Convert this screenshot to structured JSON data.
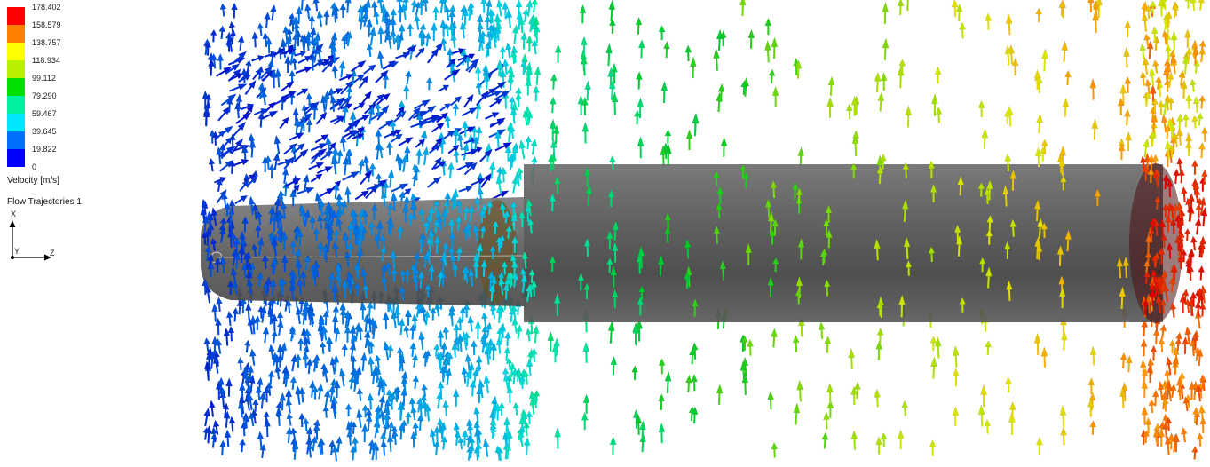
{
  "legend": {
    "ticks": [
      "178.402",
      "158.579",
      "138.757",
      "118.934",
      "99.112",
      "79.290",
      "59.467",
      "39.645",
      "19.822",
      "0"
    ],
    "colors": [
      "#ff0000",
      "#ff7f00",
      "#ffff00",
      "#b8f000",
      "#00e000",
      "#00f0a0",
      "#00e5ff",
      "#0070ff",
      "#0000ff"
    ],
    "quantity_label": "Velocity [m/s]",
    "plot_name": "Flow Trajectories 1"
  },
  "triad": {
    "x_label": "X",
    "y_label": "Y",
    "z_label": "Z"
  },
  "scene": {
    "field_max": 178.402,
    "field_min": 0
  }
}
